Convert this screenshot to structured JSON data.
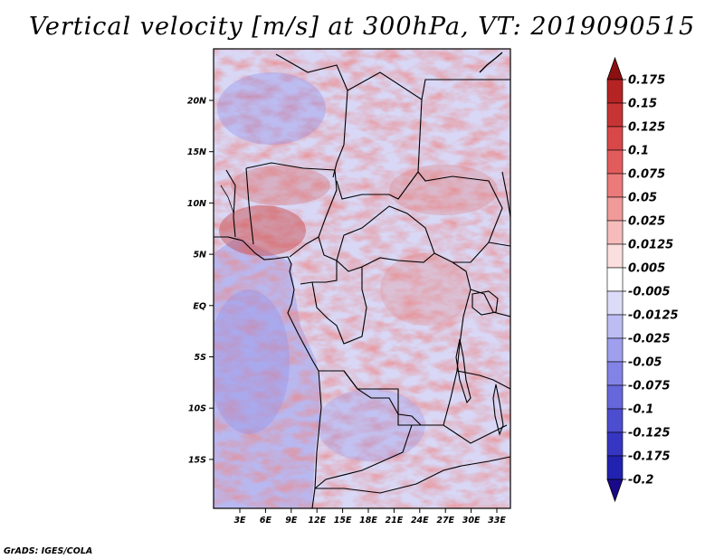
{
  "title": "Vertical velocity [m/s] at 300hPa, VT: 2019090515",
  "credit": "GrADS: IGES/COLA",
  "map": {
    "lon_ticks": [
      "3E",
      "6E",
      "9E",
      "12E",
      "15E",
      "18E",
      "21E",
      "24E",
      "27E",
      "30E",
      "33E"
    ],
    "lat_ticks": [
      "20N",
      "15N",
      "10N",
      "5N",
      "EQ",
      "5S",
      "10S",
      "15S"
    ],
    "field_colors": {
      "land_base": "#d8d8f6",
      "ocean_base": "#b8b8f0"
    }
  },
  "colorbar": {
    "labels": [
      "0.175",
      "0.15",
      "0.125",
      "0.1",
      "0.075",
      "0.05",
      "0.025",
      "0.0125",
      "0.005",
      "-0.005",
      "-0.0125",
      "-0.025",
      "-0.05",
      "-0.075",
      "-0.1",
      "-0.125",
      "-0.175",
      "-0.2"
    ],
    "colors": [
      "#a01b1b",
      "#b52323",
      "#c73434",
      "#d94848",
      "#e35c5c",
      "#eb7a7a",
      "#f19a9a",
      "#f6bcbc",
      "#fbdede",
      "#ffffff",
      "#dcdcf8",
      "#bdbdf3",
      "#9f9fee",
      "#8383e6",
      "#6767dc",
      "#4d4dd0",
      "#3636c2",
      "#2222b0",
      "#14149a"
    ],
    "tip_top_color": "#8b1010",
    "tip_bottom_color": "#1a0a8a"
  }
}
